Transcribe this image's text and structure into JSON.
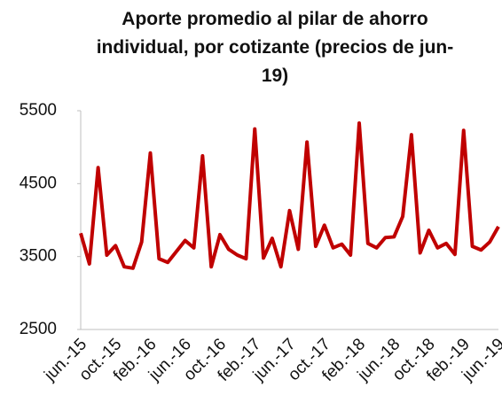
{
  "chart_data": {
    "type": "line",
    "title": "Aporte promedio al pilar de ahorro individual, por cotizante (precios de jun-19)",
    "categories": [
      "jun.-15",
      null,
      null,
      null,
      "oct.-15",
      null,
      null,
      null,
      "feb.-16",
      null,
      null,
      null,
      "jun.-16",
      null,
      null,
      null,
      "oct.-16",
      null,
      null,
      null,
      "feb.-17",
      null,
      null,
      null,
      "jun.-17",
      null,
      null,
      null,
      "oct.-17",
      null,
      null,
      null,
      "feb.-18",
      null,
      null,
      null,
      "jun.-18",
      null,
      null,
      null,
      "oct.-18",
      null,
      null,
      null,
      "feb.-19",
      null,
      null,
      null,
      "jun.-19"
    ],
    "series": [
      {
        "color": "#c00000",
        "values": [
          3820,
          3400,
          4720,
          3520,
          3650,
          3360,
          3340,
          3700,
          4920,
          3470,
          3420,
          3570,
          3720,
          3620,
          4880,
          3360,
          3800,
          3600,
          3520,
          3470,
          5250,
          3480,
          3750,
          3360,
          4130,
          3600,
          5070,
          3640,
          3930,
          3620,
          3670,
          3520,
          5330,
          3680,
          3620,
          3760,
          3770,
          4050,
          5170,
          3550,
          3860,
          3620,
          3680,
          3530,
          5230,
          3640,
          3590,
          3700,
          3910
        ]
      }
    ],
    "ylim": [
      2500,
      5500
    ],
    "yticks": [
      2500,
      3500,
      4500,
      5500
    ],
    "grid": false
  }
}
